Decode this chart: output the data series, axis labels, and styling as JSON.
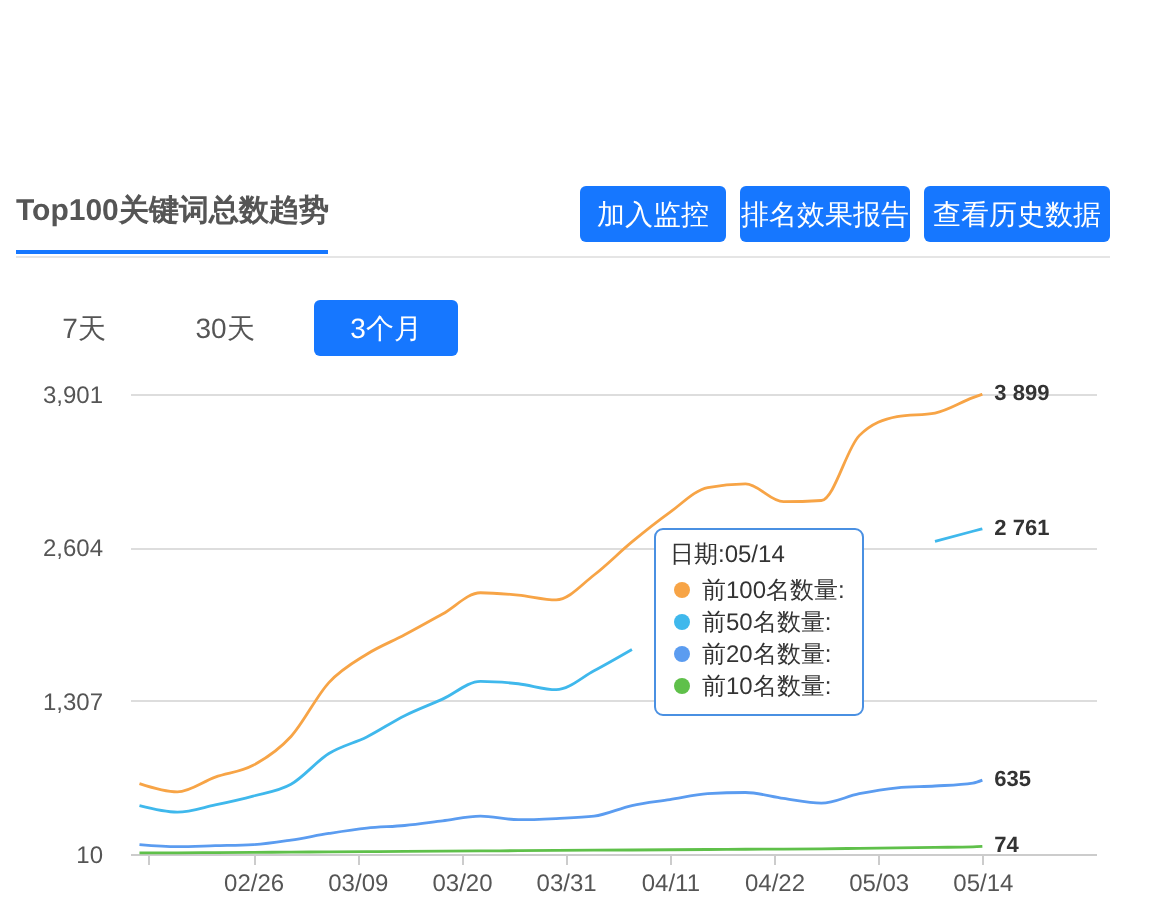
{
  "chart_data": {
    "type": "line",
    "title": "Top100关键词总数趋势",
    "annotations": [
      "加入监控",
      "排名效果报告",
      "查看历史数据",
      "7天",
      "30天",
      "3个月"
    ],
    "legend_title": "日期:05/14",
    "x": [
      "--02-14",
      "--02-18",
      "--02-22",
      "--02-26",
      "--03-02",
      "--03-06",
      "--03-10",
      "--03-14",
      "--03-18",
      "--03-22",
      "--03-26",
      "--03-30",
      "--04-03",
      "--04-07",
      "--04-11",
      "--04-15",
      "--04-19",
      "--04-23",
      "--04-27",
      "--05-01",
      "--05-05",
      "--05-09",
      "--05-13",
      "--05-14"
    ],
    "series": [
      {
        "name": "前100名数量:",
        "color": "#f7a446",
        "values": [
          605,
          535,
          660,
          760,
          1004,
          1460,
          1700,
          1864,
          2040,
          2220,
          2200,
          2160,
          2370,
          2650,
          2900,
          3110,
          3140,
          2990,
          3000,
          3549,
          3710,
          3740,
          3870,
          3899
        ],
        "value_labels": [
          null,
          null,
          null,
          null,
          null,
          null,
          null,
          null,
          null,
          null,
          null,
          null,
          null,
          null,
          null,
          null,
          null,
          null,
          null,
          null,
          null,
          null,
          null,
          "3 899"
        ]
      },
      {
        "name": "前50名数量:",
        "color": "#3fb8ec",
        "values": [
          419,
          364,
          425,
          500,
          600,
          860,
          1000,
          1180,
          1320,
          1470,
          1450,
          1400,
          1560,
          1740,
          null,
          null,
          null,
          null,
          null,
          null,
          null,
          2655,
          2740,
          2761
        ],
        "value_labels": [
          null,
          null,
          null,
          null,
          null,
          null,
          null,
          null,
          null,
          null,
          null,
          null,
          null,
          null,
          null,
          null,
          null,
          null,
          null,
          null,
          null,
          null,
          null,
          "2 761"
        ]
      },
      {
        "name": "前20名数量:",
        "color": "#5b9cf0",
        "values": [
          89,
          72,
          80,
          89,
          128,
          184,
          229,
          251,
          290,
          330,
          300,
          310,
          330,
          420,
          470,
          520,
          530,
          480,
          440,
          520,
          570,
          585,
          610,
          635
        ],
        "value_labels": [
          null,
          null,
          null,
          null,
          null,
          null,
          null,
          null,
          null,
          null,
          null,
          null,
          null,
          null,
          null,
          null,
          null,
          null,
          null,
          null,
          null,
          null,
          null,
          "635"
        ]
      },
      {
        "name": "前10名数量:",
        "color": "#5fc04a",
        "values": [
          20,
          20,
          22,
          24,
          26,
          28,
          30,
          32,
          34,
          36,
          38,
          40,
          42,
          44,
          46,
          48,
          50,
          52,
          54,
          58,
          62,
          66,
          70,
          74
        ],
        "value_labels": [
          null,
          null,
          null,
          null,
          null,
          null,
          null,
          null,
          null,
          null,
          null,
          null,
          null,
          null,
          null,
          null,
          null,
          null,
          null,
          null,
          null,
          null,
          null,
          "74"
        ]
      }
    ],
    "xlim": [
      "--02-13",
      "--05-26"
    ],
    "xticks": [
      {
        "value": "--02-15",
        "label": null
      },
      {
        "value": "--02-26",
        "label": "02/26"
      },
      {
        "value": "--03-09",
        "label": "03/09"
      },
      {
        "value": "--03-20",
        "label": "03/20"
      },
      {
        "value": "--03-31",
        "label": "03/31"
      },
      {
        "value": "--04-11",
        "label": "04/11"
      },
      {
        "value": "--04-22",
        "label": "04/22"
      },
      {
        "value": "--05-03",
        "label": "05/03"
      },
      {
        "value": "--05-14",
        "label": "05/14"
      }
    ],
    "ylim": [
      10,
      3901
    ],
    "yticks": [
      10,
      {
        "value": 1307,
        "label": "1,307"
      },
      {
        "value": 2604,
        "label": "2,604"
      },
      {
        "value": 3901,
        "label": "3,901"
      }
    ],
    "grid": "y",
    "legend": "right",
    "marker": "none",
    "line_style": "solid"
  }
}
